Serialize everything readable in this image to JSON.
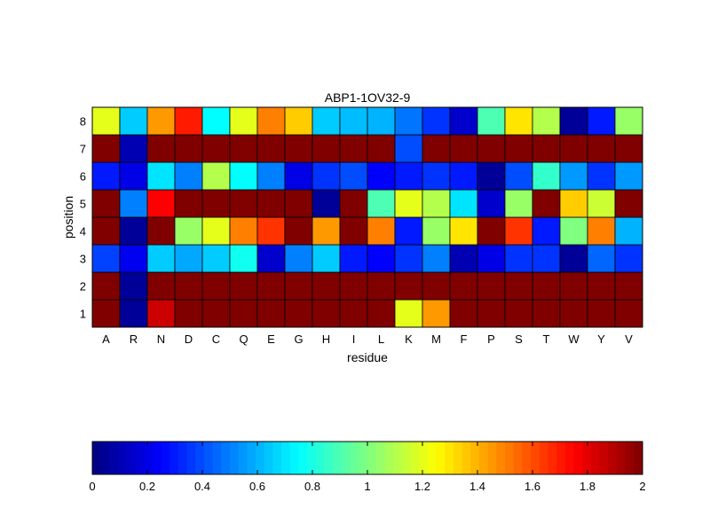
{
  "chart_data": {
    "type": "heatmap",
    "title": "ABP1-1OV32-9",
    "xlabel": "residue",
    "ylabel": "position",
    "x_categories": [
      "A",
      "R",
      "N",
      "D",
      "C",
      "Q",
      "E",
      "G",
      "H",
      "I",
      "L",
      "K",
      "M",
      "F",
      "P",
      "S",
      "T",
      "W",
      "Y",
      "V"
    ],
    "y_categories": [
      "1",
      "2",
      "3",
      "4",
      "5",
      "6",
      "7",
      "8"
    ],
    "values": [
      [
        2.0,
        0.05,
        1.85,
        2.0,
        2.0,
        2.0,
        2.0,
        2.0,
        2.0,
        2.0,
        2.0,
        1.2,
        1.45,
        2.0,
        2.0,
        2.0,
        2.0,
        2.0,
        2.0,
        2.0
      ],
      [
        2.0,
        0.05,
        2.0,
        2.0,
        2.0,
        2.0,
        2.0,
        2.0,
        2.0,
        2.0,
        2.0,
        2.0,
        2.0,
        2.0,
        2.0,
        2.0,
        2.0,
        2.0,
        2.0,
        2.0
      ],
      [
        0.38,
        0.22,
        0.65,
        0.58,
        0.65,
        0.78,
        0.15,
        0.5,
        0.65,
        0.3,
        0.25,
        0.35,
        0.5,
        0.1,
        0.2,
        0.35,
        0.35,
        0.05,
        0.45,
        0.35
      ],
      [
        2.0,
        0.05,
        2.0,
        1.05,
        1.2,
        1.5,
        1.65,
        2.0,
        1.45,
        2.0,
        1.5,
        0.3,
        1.05,
        1.3,
        2.0,
        1.65,
        0.3,
        1.0,
        1.5,
        0.6
      ],
      [
        2.0,
        0.5,
        1.75,
        2.0,
        2.0,
        2.0,
        2.0,
        2.0,
        0.05,
        2.0,
        0.9,
        1.2,
        1.1,
        0.7,
        0.15,
        1.05,
        2.0,
        1.35,
        1.15,
        2.0
      ],
      [
        0.3,
        0.2,
        0.7,
        0.5,
        1.1,
        0.75,
        0.5,
        0.2,
        0.35,
        0.4,
        0.25,
        0.3,
        0.35,
        0.3,
        0.05,
        0.4,
        0.85,
        0.55,
        0.35,
        0.55
      ],
      [
        2.0,
        0.1,
        2.0,
        2.0,
        2.0,
        2.0,
        2.0,
        2.0,
        2.0,
        2.0,
        2.0,
        0.4,
        2.0,
        2.0,
        2.0,
        2.0,
        2.0,
        2.0,
        2.0,
        2.0
      ],
      [
        1.2,
        0.65,
        1.45,
        1.7,
        0.75,
        1.2,
        1.5,
        1.35,
        0.65,
        0.62,
        0.6,
        0.48,
        0.35,
        0.15,
        0.9,
        1.3,
        1.1,
        0.05,
        0.3,
        1.05
      ]
    ],
    "colorbar": {
      "colormap": "jet",
      "range": [
        0,
        2
      ],
      "ticks": [
        0,
        0.2,
        0.4,
        0.6,
        0.8,
        1,
        1.2,
        1.4,
        1.6,
        1.8,
        2
      ],
      "tick_labels": [
        "0",
        "0.2",
        "0.4",
        "0.6",
        "0.8",
        "1",
        "1.2",
        "1.4",
        "1.6",
        "1.8",
        "2"
      ]
    },
    "grid": false,
    "colors": {
      "background": "#ffffff",
      "axis": "#000000",
      "cell_border": "#000000"
    }
  }
}
